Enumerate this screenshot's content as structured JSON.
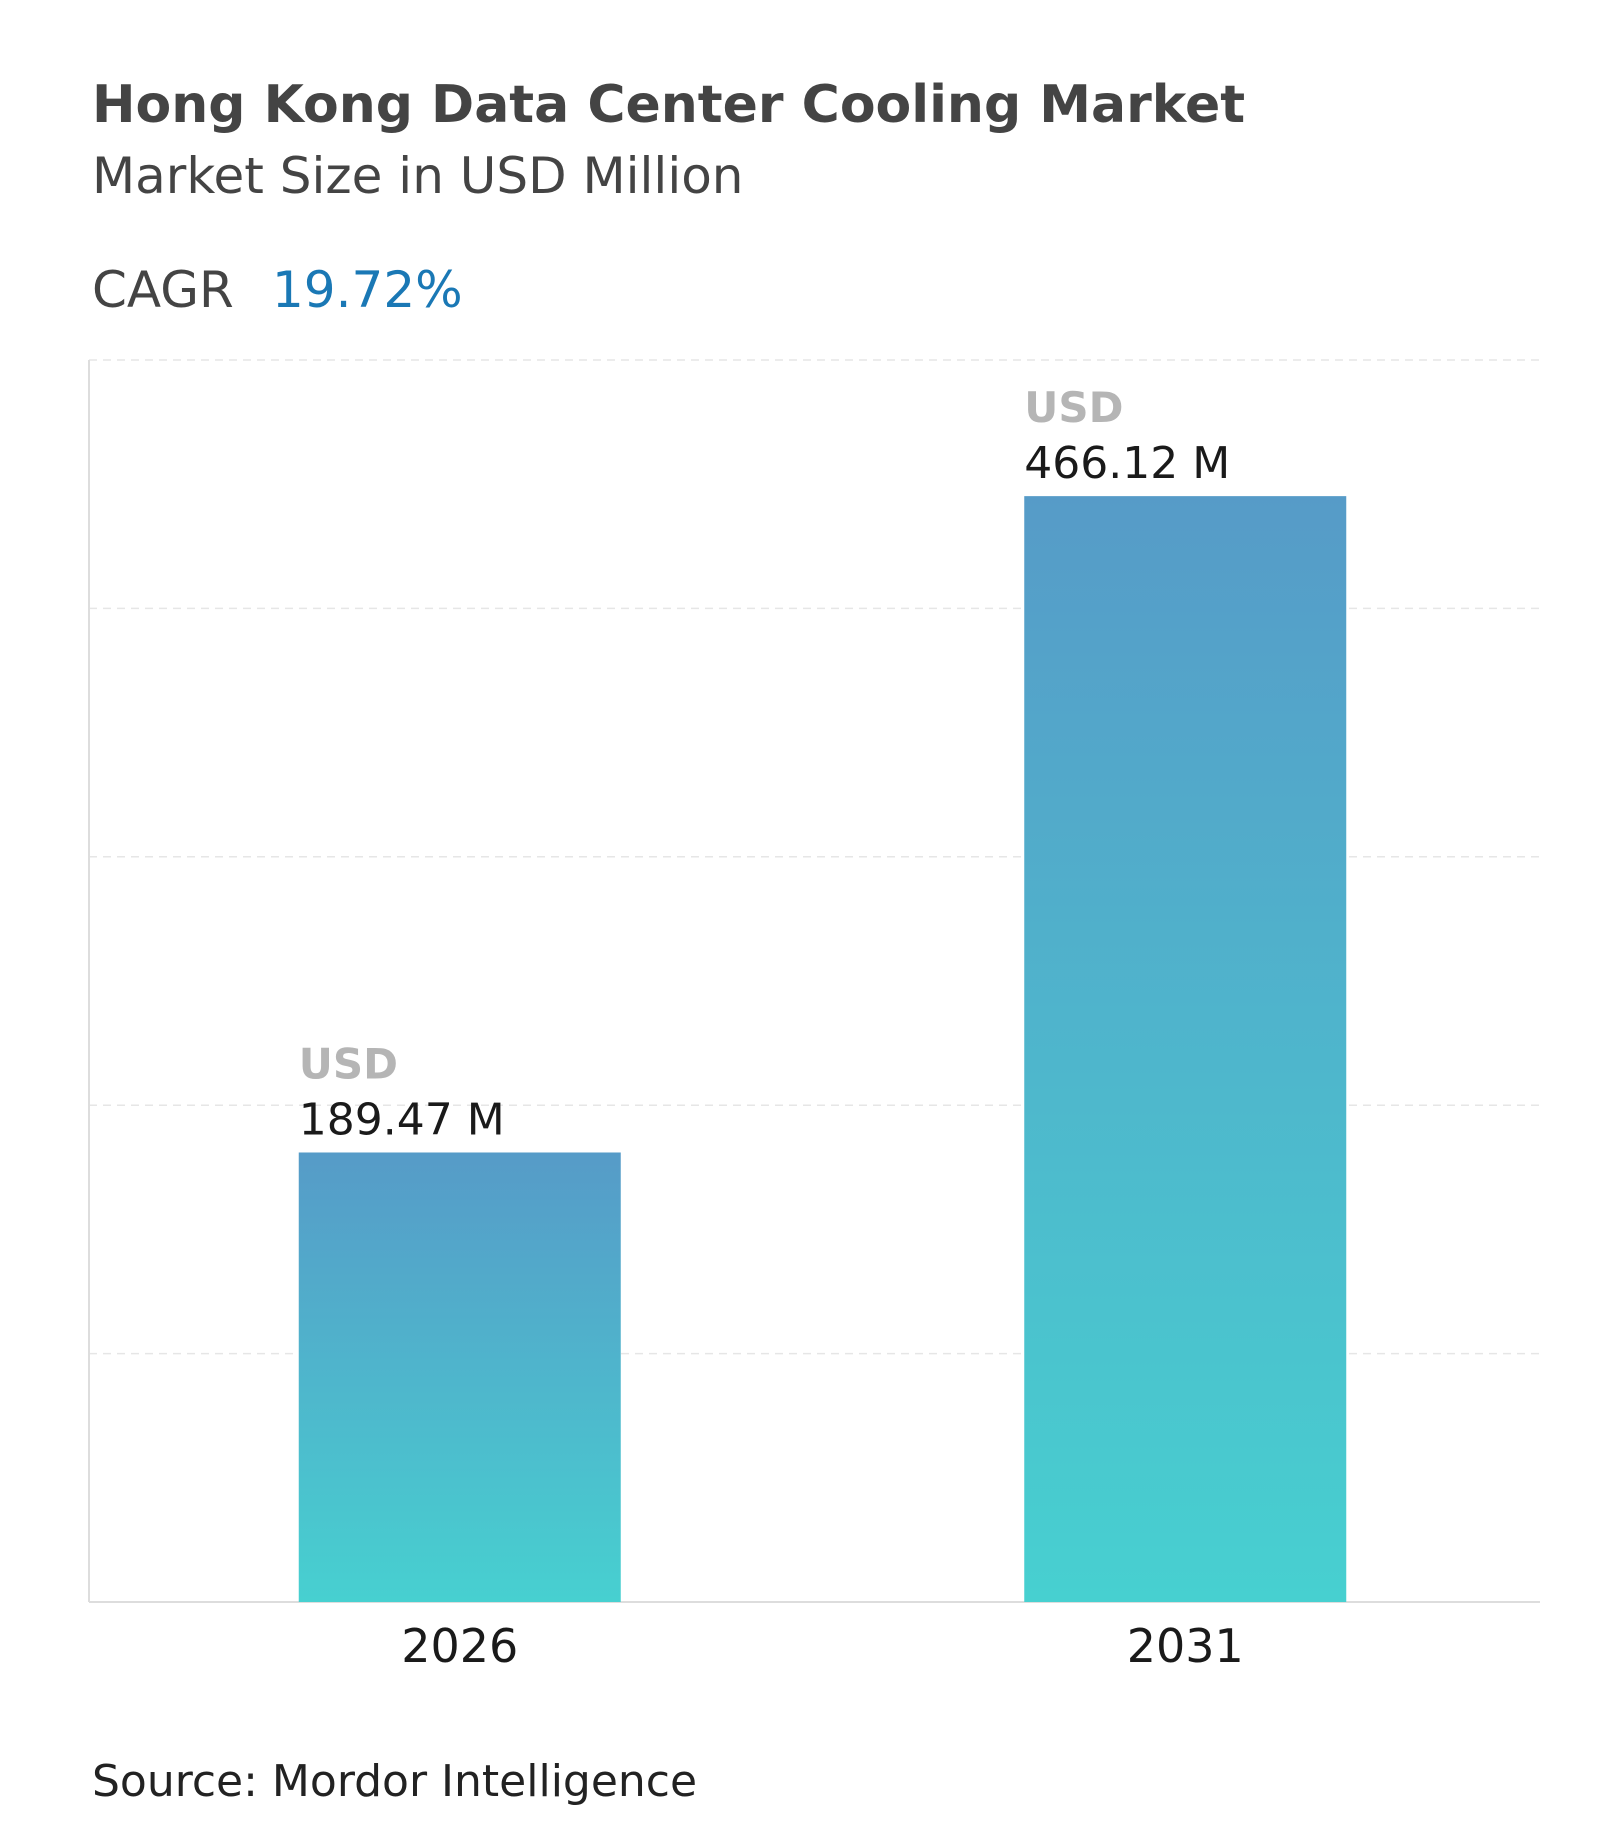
{
  "chart_data": {
    "type": "bar",
    "title": "Hong Kong Data Center Cooling Market",
    "subtitle": "Market Size in USD Million",
    "cagr_label": "CAGR",
    "cagr_value": "19.72%",
    "categories": [
      "2026",
      "2031"
    ],
    "values": [
      189.47,
      466.12
    ],
    "value_labels": [
      "189.47 M",
      "466.12 M"
    ],
    "value_label_unit": "USD",
    "gradient": [
      "#569bc8",
      "#47d0d0"
    ],
    "ylim": [
      0,
      523.5
    ],
    "yticks": [
      0,
      104.7,
      209.4,
      314.1,
      418.8,
      523.5
    ],
    "grid": true,
    "source": "Source: Mordor Intelligence"
  }
}
